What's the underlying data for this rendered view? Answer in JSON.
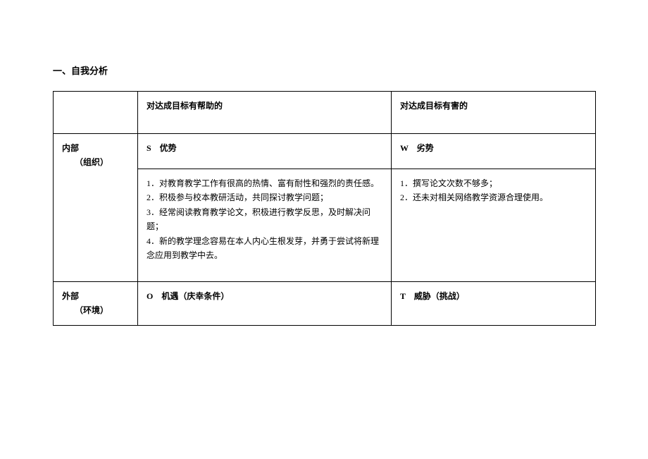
{
  "section_title": "一、自我分析",
  "table": {
    "header": {
      "col1": "",
      "col2": "对达成目标有帮助的",
      "col3": "对达成目标有害的"
    },
    "row_internal": {
      "label_line1": "内部",
      "label_line2": "（组织）",
      "s_label": "S　优势",
      "w_label": "W　劣势",
      "s_content_1": "1．对教育教学工作有很高的热情、富有耐性和强烈的责任感。",
      "s_content_2": "2．积极参与校本教研活动，共同探讨教学问题；",
      "s_content_3": "3．经常阅读教育教学论文，积极进行教学反思，及时解决问题；",
      "s_content_4": "4．新的教学理念容易在本人内心生根发芽，并勇于尝试将新理念应用到教学中去。",
      "w_content_1": "1．撰写论文次数不够多；",
      "w_content_2": "2．还未对相关网络教学资源合理使用。"
    },
    "row_external": {
      "label_line1": "外部",
      "label_line2": "（环境）",
      "o_label": "O　机遇（庆幸条件）",
      "t_label": "T　威胁（挑战）"
    }
  },
  "styling": {
    "background_color": "#ffffff",
    "text_color": "#000000",
    "border_color": "#000000",
    "font_family": "SimSun",
    "base_font_size": 12,
    "title_font_size": 13
  }
}
